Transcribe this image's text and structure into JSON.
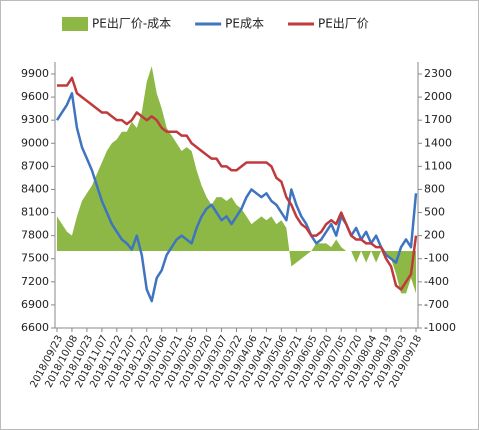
{
  "chart_data": {
    "type": "line",
    "categories": [
      "2018/09/23",
      null,
      null,
      "2018/10/08",
      null,
      null,
      "2018/10/23",
      null,
      null,
      "2018/11/07",
      null,
      null,
      "2018/11/22",
      null,
      null,
      "2018/12/07",
      null,
      null,
      "2018/12/22",
      null,
      null,
      "2019/01/06",
      null,
      null,
      "2019/01/21",
      null,
      null,
      "2019/02/05",
      null,
      null,
      "2019/02/20",
      null,
      null,
      "2019/03/07",
      null,
      null,
      "2019/03/22",
      null,
      null,
      "2019/04/06",
      null,
      null,
      "2019/04/21",
      null,
      null,
      "2019/05/06",
      null,
      null,
      "2019/05/21",
      null,
      null,
      "2019/06/05",
      null,
      null,
      "2019/06/20",
      null,
      null,
      "2019/07/05",
      null,
      null,
      "2019/07/20",
      null,
      null,
      "2019/08/04",
      null,
      null,
      "2019/08/19",
      null,
      null,
      "2019/09/03",
      null,
      null,
      "2019/09/18"
    ],
    "series": [
      {
        "name": "PE出厂价-成本",
        "type": "area",
        "axis": "y2",
        "color": "#8db845",
        "values": [
          450,
          350,
          250,
          200,
          450,
          650,
          750,
          850,
          1000,
          1150,
          1300,
          1400,
          1450,
          1550,
          1550,
          1680,
          1600,
          1800,
          2200,
          2400,
          2050,
          1850,
          1600,
          1500,
          1400,
          1300,
          1350,
          1300,
          1050,
          850,
          700,
          600,
          700,
          700,
          650,
          700,
          600,
          550,
          450,
          350,
          400,
          450,
          400,
          450,
          350,
          400,
          300,
          -200,
          -150,
          -100,
          -50,
          0,
          100,
          100,
          100,
          50,
          150,
          50,
          0,
          0,
          -150,
          0,
          -150,
          0,
          -150,
          0,
          -50,
          -100,
          -300,
          -550,
          -550,
          -350,
          -550
        ]
      },
      {
        "name": "PE成本",
        "type": "line",
        "color": "#3f74c0",
        "values": [
          9300,
          9400,
          9500,
          9650,
          9200,
          8950,
          8800,
          8650,
          8450,
          8250,
          8100,
          7950,
          7850,
          7750,
          7700,
          7620,
          7800,
          7550,
          7100,
          6950,
          7250,
          7350,
          7550,
          7650,
          7750,
          7800,
          7750,
          7700,
          7900,
          8050,
          8150,
          8200,
          8100,
          8000,
          8050,
          7950,
          8050,
          8150,
          8300,
          8400,
          8350,
          8300,
          8350,
          8250,
          8200,
          8100,
          8000,
          8400,
          8200,
          8050,
          7950,
          7800,
          7700,
          7750,
          7850,
          7950,
          7800,
          8050,
          7950,
          7800,
          7900,
          7750,
          7850,
          7700,
          7800,
          7650,
          7550,
          7500,
          7450,
          7650,
          7750,
          7650,
          8350
        ]
      },
      {
        "name": "PE出厂价",
        "type": "line",
        "color": "#c0393b",
        "values": [
          9750,
          9750,
          9750,
          9850,
          9650,
          9600,
          9550,
          9500,
          9450,
          9400,
          9400,
          9350,
          9300,
          9300,
          9250,
          9300,
          9400,
          9350,
          9300,
          9350,
          9300,
          9200,
          9150,
          9150,
          9150,
          9100,
          9100,
          9000,
          8950,
          8900,
          8850,
          8800,
          8800,
          8700,
          8700,
          8650,
          8650,
          8700,
          8750,
          8750,
          8750,
          8750,
          8750,
          8700,
          8550,
          8500,
          8300,
          8200,
          8050,
          7950,
          7900,
          7800,
          7800,
          7850,
          7950,
          8000,
          7950,
          8100,
          7950,
          7800,
          7750,
          7750,
          7700,
          7700,
          7650,
          7650,
          7500,
          7400,
          7150,
          7100,
          7200,
          7300,
          7800
        ]
      }
    ],
    "ylim": [
      6600,
      9900
    ],
    "yticks": [
      6600,
      6900,
      7200,
      7500,
      7800,
      8100,
      8400,
      8700,
      9000,
      9300,
      9600,
      9900
    ],
    "y2lim": [
      -1000,
      2300
    ],
    "y2ticks": [
      -1000,
      -700,
      -400,
      -100,
      200,
      500,
      800,
      1100,
      1400,
      1700,
      2000,
      2300
    ],
    "grid": false,
    "legend": "top"
  }
}
